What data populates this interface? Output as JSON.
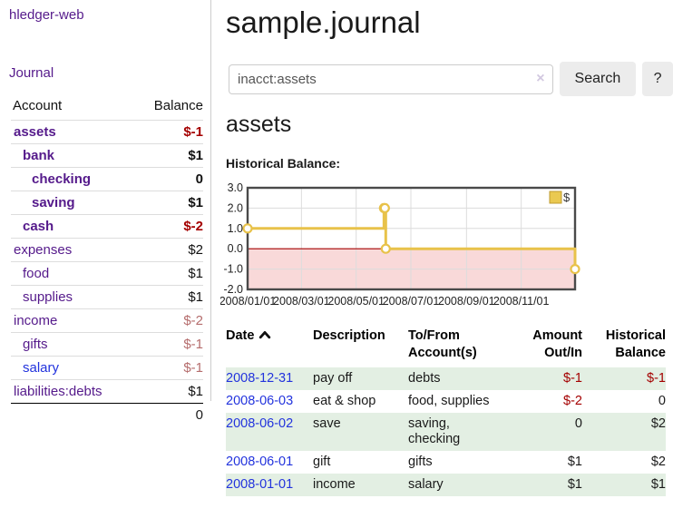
{
  "app_title": "hledger-web",
  "sidebar": {
    "journal_link": "Journal",
    "account_header": "Account",
    "balance_header": "Balance",
    "accounts": [
      {
        "name": "assets",
        "balance": "$-1",
        "level": 0,
        "bold": true,
        "name_color": "purple",
        "balance_tone": "negative"
      },
      {
        "name": "bank",
        "balance": "$1",
        "level": 1,
        "bold": true,
        "name_color": "purple",
        "balance_tone": "positive"
      },
      {
        "name": "checking",
        "balance": "0",
        "level": 2,
        "bold": true,
        "name_color": "purple",
        "balance_tone": "positive"
      },
      {
        "name": "saving",
        "balance": "$1",
        "level": 2,
        "bold": true,
        "name_color": "purple",
        "balance_tone": "positive"
      },
      {
        "name": "cash",
        "balance": "$-2",
        "level": 1,
        "bold": true,
        "name_color": "purple",
        "balance_tone": "negative"
      },
      {
        "name": "expenses",
        "balance": "$2",
        "level": 0,
        "bold": false,
        "name_color": "purple",
        "balance_tone": "positive"
      },
      {
        "name": "food",
        "balance": "$1",
        "level": 1,
        "bold": false,
        "name_color": "purple",
        "balance_tone": "positive"
      },
      {
        "name": "supplies",
        "balance": "$1",
        "level": 1,
        "bold": false,
        "name_color": "purple",
        "balance_tone": "positive"
      },
      {
        "name": "income",
        "balance": "$-2",
        "level": 0,
        "bold": false,
        "name_color": "purple",
        "balance_tone": "negative-muted"
      },
      {
        "name": "gifts",
        "balance": "$-1",
        "level": 1,
        "bold": false,
        "name_color": "purple",
        "balance_tone": "negative-muted"
      },
      {
        "name": "salary",
        "balance": "$-1",
        "level": 1,
        "bold": false,
        "name_color": "blue",
        "balance_tone": "negative-muted"
      },
      {
        "name": "liabilities:debts",
        "balance": "$1",
        "level": 0,
        "bold": false,
        "name_color": "purple",
        "balance_tone": "positive"
      }
    ],
    "total": "0"
  },
  "main": {
    "title": "sample.journal",
    "search": {
      "value": "inacct:assets",
      "clear_icon": "×",
      "search_button": "Search",
      "help_button": "?"
    },
    "account_heading": "assets",
    "chart_heading": "Historical Balance:"
  },
  "chart_data": {
    "type": "line",
    "step": true,
    "title": "Historical Balance",
    "series": [
      {
        "name": "$",
        "points": [
          {
            "date": "2008/01/01",
            "value": 1
          },
          {
            "date": "2008/06/01",
            "value": 2
          },
          {
            "date": "2008/06/02",
            "value": 2
          },
          {
            "date": "2008/06/03",
            "value": 0
          },
          {
            "date": "2008/12/31",
            "value": -1
          }
        ]
      }
    ],
    "ylim": [
      -2,
      3
    ],
    "yticks": [
      3,
      2,
      1,
      0,
      -1,
      -2
    ],
    "ytick_labels": [
      "3.0",
      "2.0",
      "1.0",
      "0.0",
      "-1.0",
      "-2.0"
    ],
    "xticks": [
      "2008/01/01",
      "2008/03/01",
      "2008/05/01",
      "2008/07/01",
      "2008/09/01",
      "2008/11/01"
    ],
    "x_range": [
      "2008/01/01",
      "2008/12/31"
    ],
    "legend": {
      "label": "$",
      "position": "top-right"
    },
    "negative_region_shaded": true,
    "grid": true
  },
  "register": {
    "headers": {
      "date": "Date",
      "description": "Description",
      "accounts": "To/From Account(s)",
      "amount": "Amount Out/In",
      "balance": "Historical Balance"
    },
    "rows": [
      {
        "date": "2008-12-31",
        "description": "pay off",
        "accounts": "debts",
        "amount": "$-1",
        "balance": "$-1",
        "amount_negative": true,
        "balance_negative": true,
        "shaded": true
      },
      {
        "date": "2008-06-03",
        "description": "eat & shop",
        "accounts": "food, supplies",
        "amount": "$-2",
        "balance": "0",
        "amount_negative": true,
        "balance_negative": false,
        "shaded": false
      },
      {
        "date": "2008-06-02",
        "description": "save",
        "accounts": "saving, checking",
        "amount": "0",
        "balance": "$2",
        "amount_negative": false,
        "balance_negative": false,
        "shaded": true
      },
      {
        "date": "2008-06-01",
        "description": "gift",
        "accounts": "gifts",
        "amount": "$1",
        "balance": "$2",
        "amount_negative": false,
        "balance_negative": false,
        "shaded": false
      },
      {
        "date": "2008-01-01",
        "description": "income",
        "accounts": "salary",
        "amount": "$1",
        "balance": "$1",
        "amount_negative": false,
        "balance_negative": false,
        "shaded": true
      }
    ]
  },
  "colors": {
    "link_purple": "#551a8b",
    "link_blue": "#2233dd",
    "negative": "#a40000",
    "negative_muted": "#b56d6d",
    "row_shade_green": "#e3efe3",
    "chart_line_gold": "#e8c24a",
    "chart_legend_fill": "#eac951",
    "chart_legend_border": "#bf9b30",
    "chart_negative_bg": "#f9d9d9",
    "chart_zero_line": "#a40000",
    "chart_grid": "#dcdcdc",
    "chart_border": "#4a4a4a"
  }
}
